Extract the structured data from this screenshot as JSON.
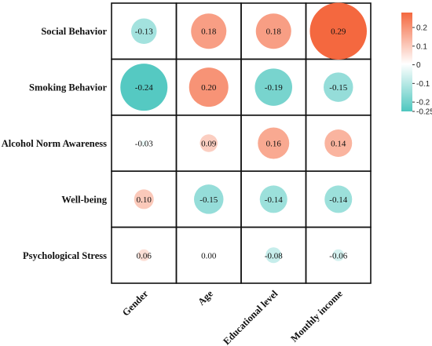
{
  "chart_data": {
    "type": "heatmap",
    "style": "circle correlation matrix",
    "rows": [
      "Social Behavior",
      "Smoking Behavior",
      "Alcohol Norm Awareness",
      "Well-being",
      "Psychological Stress"
    ],
    "columns": [
      "Gender",
      "Age",
      "Educational level",
      "Monthly income"
    ],
    "values": [
      [
        -0.13,
        0.18,
        0.18,
        0.29
      ],
      [
        -0.24,
        0.2,
        -0.19,
        -0.15
      ],
      [
        -0.03,
        0.09,
        0.16,
        0.14
      ],
      [
        0.1,
        -0.15,
        -0.14,
        -0.14
      ],
      [
        0.06,
        0.0,
        -0.08,
        -0.06
      ]
    ],
    "labels": [
      [
        "-0.13",
        "0.18",
        "0.18",
        "0.29"
      ],
      [
        "-0.24",
        "0.20",
        "-0.19",
        "-0.15"
      ],
      [
        "-0.03",
        "0.09",
        "0.16",
        "0.14"
      ],
      [
        "0.10",
        "-0.15",
        "-0.14",
        "-0.14"
      ],
      [
        "0.06",
        "0.00",
        "-0.08",
        "-0.06"
      ]
    ],
    "colorbar": {
      "range": [
        -0.25,
        0.28
      ],
      "ticks": [
        0.2,
        0.1,
        0,
        -0.1,
        -0.2,
        -0.25
      ],
      "tick_labels": [
        "0.2",
        "0.1",
        "0",
        "-0.1",
        "-0.2",
        "-0.25"
      ],
      "neg_color": "#4ec7bf",
      "mid_color": "#ffffff",
      "pos_color": "#f4683f"
    },
    "grid": true,
    "legend": "right"
  }
}
